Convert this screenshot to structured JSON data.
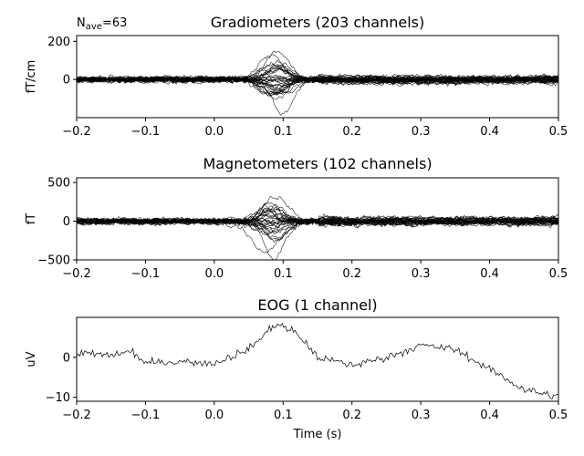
{
  "chart_data": [
    {
      "type": "line",
      "panel": "grad",
      "title": "Gradiometers (203 channels)",
      "ylabel": "fT/cm",
      "xlabel": "",
      "xlim": [
        -0.2,
        0.5
      ],
      "ylim": [
        -200,
        230
      ],
      "xticks": [
        -0.2,
        -0.1,
        0.0,
        0.1,
        0.2,
        0.3,
        0.4,
        0.5
      ],
      "xtick_labels": [
        "−0.2",
        "−0.1",
        "0.0",
        "0.1",
        "0.2",
        "0.3",
        "0.4",
        "0.5"
      ],
      "yticks": [
        200,
        0
      ],
      "ytick_labels": [
        "200",
        "0"
      ],
      "annotation": {
        "base": "N",
        "sub": "ave",
        "rest": "=63"
      },
      "series_count": 203,
      "n_drawn": 36,
      "peak_time": 0.09,
      "peak_amplitude": 200,
      "baseline_noise": 15
    },
    {
      "type": "line",
      "panel": "mag",
      "title": "Magnetometers (102 channels)",
      "ylabel": "fT",
      "xlabel": "",
      "xlim": [
        -0.2,
        0.5
      ],
      "ylim": [
        -500,
        560
      ],
      "xticks": [
        -0.2,
        -0.1,
        0.0,
        0.1,
        0.2,
        0.3,
        0.4,
        0.5
      ],
      "xtick_labels": [
        "−0.2",
        "−0.1",
        "0.0",
        "0.1",
        "0.2",
        "0.3",
        "0.4",
        "0.5"
      ],
      "yticks": [
        500,
        0,
        -500
      ],
      "ytick_labels": [
        "500",
        "0",
        "−500"
      ],
      "series_count": 102,
      "n_drawn": 32,
      "peak_time": 0.08,
      "peak_amplitude": 520,
      "baseline_noise": 40
    },
    {
      "type": "line",
      "panel": "eog",
      "title": "EOG (1 channel)",
      "ylabel": "uV",
      "xlabel": "Time (s)",
      "xlim": [
        -0.2,
        0.5
      ],
      "ylim": [
        -11,
        10
      ],
      "xticks": [
        -0.2,
        -0.1,
        0.0,
        0.1,
        0.2,
        0.3,
        0.4,
        0.5
      ],
      "xtick_labels": [
        "−0.2",
        "−0.1",
        "0.0",
        "0.1",
        "0.2",
        "0.3",
        "0.4",
        "0.5"
      ],
      "yticks": [
        0,
        -10
      ],
      "ytick_labels": [
        "0",
        "−10"
      ],
      "series_count": 1,
      "keypoints": {
        "x": [
          -0.2,
          -0.15,
          -0.12,
          -0.1,
          -0.05,
          0.0,
          0.05,
          0.09,
          0.12,
          0.15,
          0.2,
          0.25,
          0.3,
          0.35,
          0.4,
          0.45,
          0.5
        ],
        "y": [
          1,
          0.5,
          1.5,
          -1.5,
          -1,
          -1.5,
          2,
          8.5,
          6,
          0,
          -2,
          0,
          3,
          2,
          -3,
          -8,
          -10
        ]
      }
    }
  ]
}
